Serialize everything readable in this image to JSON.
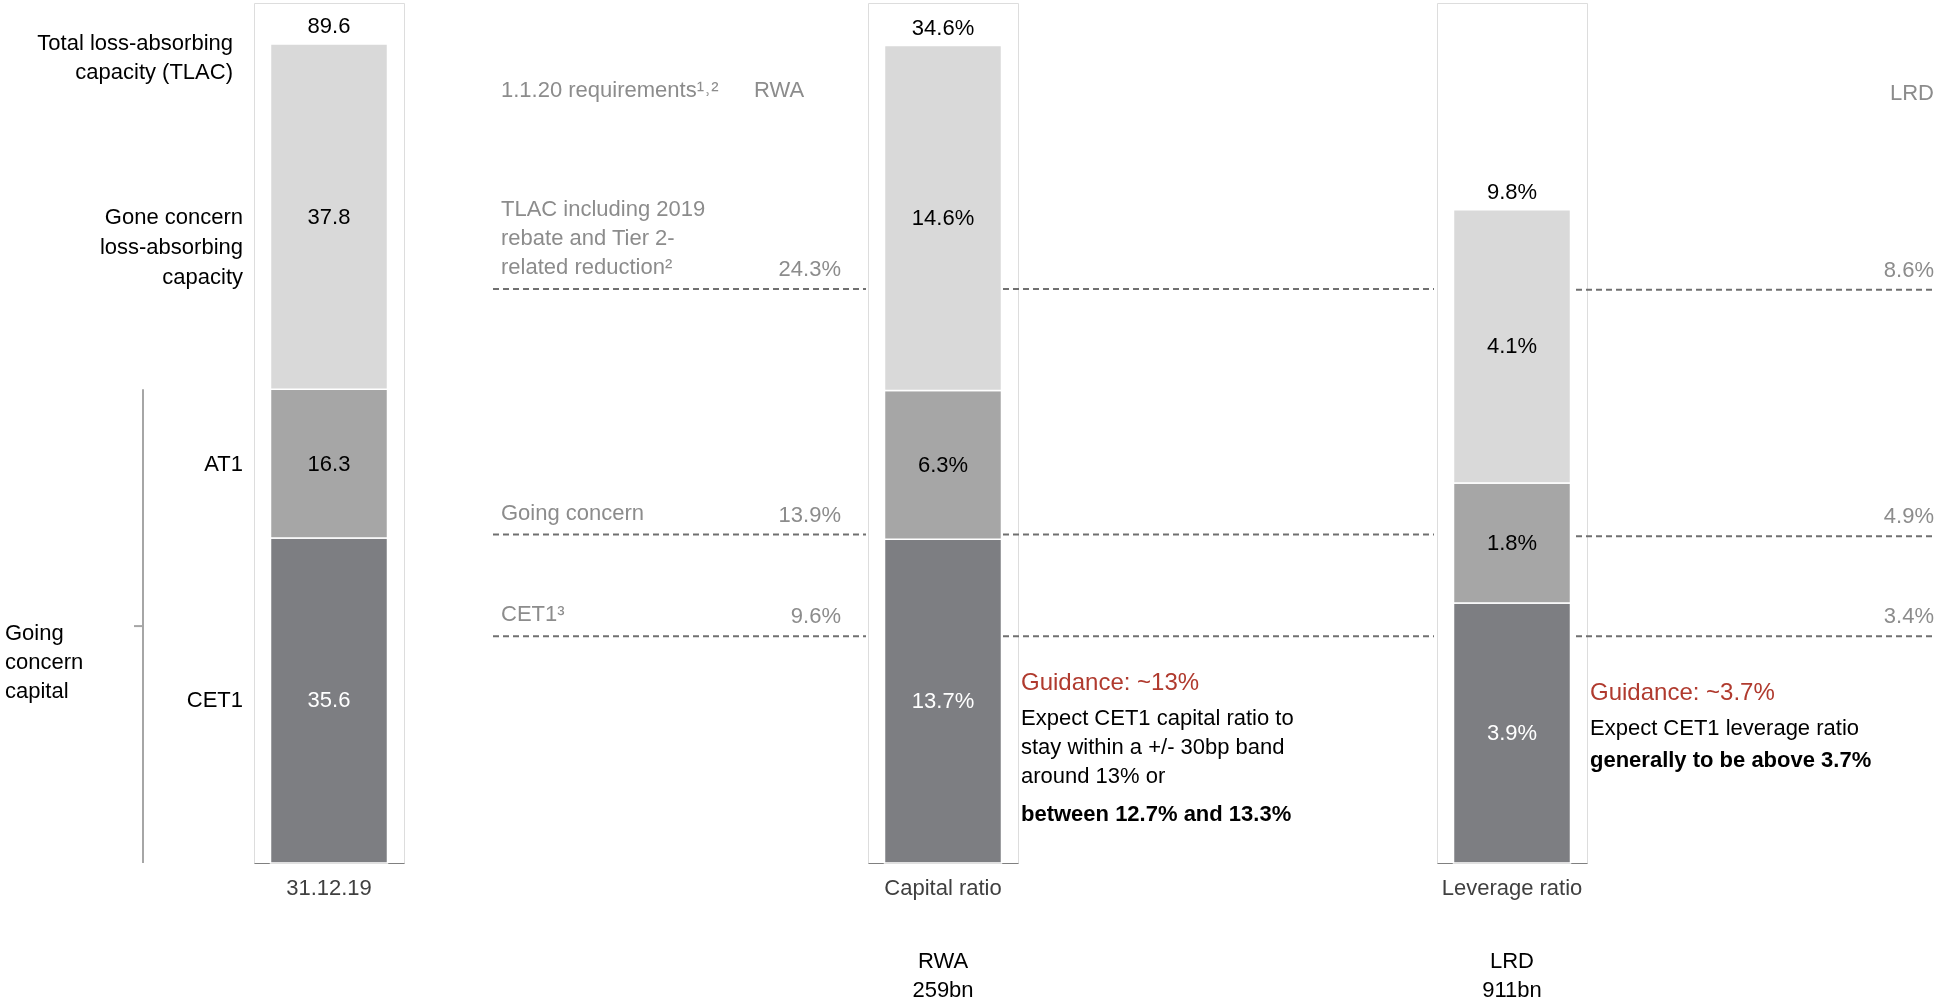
{
  "chart_data": [
    {
      "type": "bar",
      "stacked": true,
      "categories": [
        "31.12.19"
      ],
      "tick_labels": "x",
      "ylim": [
        0,
        94.2
      ],
      "data_labels": true,
      "totals": [
        "89.6"
      ],
      "series": [
        {
          "name": "CET1",
          "color": "#7d7e82",
          "values": [
            35.6
          ]
        },
        {
          "name": "AT1",
          "color": "#a6a6a6",
          "values": [
            16.3
          ]
        },
        {
          "name": "Gone concern loss-absorbing capacity",
          "color": "#d9d9d9",
          "values": [
            37.8
          ]
        }
      ],
      "annotations": [
        "Total loss-absorbing capacity (TLAC)",
        "Going concern capital"
      ]
    },
    {
      "type": "bar",
      "stacked": true,
      "categories": [
        "Capital ratio"
      ],
      "tick_labels": "x",
      "ylim": [
        0,
        36.4
      ],
      "totals": [
        "34.6%"
      ],
      "series": [
        {
          "color": "#7d7e82",
          "values": [
            13.7
          ],
          "value_labels": [
            "13.7%"
          ]
        },
        {
          "color": "#a6a6a6",
          "values": [
            6.3
          ],
          "value_labels": [
            "6.3%"
          ]
        },
        {
          "color": "#d9d9d9",
          "values": [
            14.6
          ],
          "value_labels": [
            "14.6%"
          ]
        }
      ],
      "ref_lines": [
        {
          "axis": "y",
          "value": 24.3,
          "label": "24.3%",
          "color": "#707070",
          "line_style": "dashed"
        },
        {
          "axis": "y",
          "value": 13.9,
          "label": "13.9%",
          "color": "#707070",
          "line_style": "dashed"
        },
        {
          "axis": "y",
          "value": 9.6,
          "label": "9.6%",
          "color": "#707070",
          "line_style": "dashed"
        }
      ],
      "annotations": [
        "1.1.20 requirements¹˒²",
        "RWA",
        {
          "text": "TLAC including 2019 rebate and Tier 2-related reduction²",
          "y": 24.3
        },
        {
          "text": "Going concern",
          "y": 13.9
        },
        {
          "text": "CET1³",
          "y": 9.6
        },
        "Guidance: ~13%",
        "Expect CET1 capital ratio to stay within a +/- 30bp band around 13% or",
        "between 12.7% and 13.3%",
        "RWA 259bn"
      ]
    },
    {
      "type": "bar",
      "stacked": true,
      "categories": [
        "Leverage ratio"
      ],
      "tick_labels": "x",
      "ylim": [
        0,
        12.9
      ],
      "totals": [
        "9.8%"
      ],
      "series": [
        {
          "color": "#7d7e82",
          "values": [
            3.9
          ],
          "value_labels": [
            "3.9%"
          ]
        },
        {
          "color": "#a6a6a6",
          "values": [
            1.8
          ],
          "value_labels": [
            "1.8%"
          ]
        },
        {
          "color": "#d9d9d9",
          "values": [
            4.1
          ],
          "value_labels": [
            "4.1%"
          ]
        }
      ],
      "ref_lines": [
        {
          "axis": "y",
          "value": 8.6,
          "label": "8.6%",
          "color": "#707070",
          "line_style": "dashed"
        },
        {
          "axis": "y",
          "value": 4.9,
          "label": "4.9%",
          "color": "#707070",
          "line_style": "dashed"
        },
        {
          "axis": "y",
          "value": 3.4,
          "label": "3.4%",
          "color": "#707070",
          "line_style": "dashed"
        }
      ],
      "annotations": [
        "LRD",
        "Guidance: ~3.7%",
        "Expect CET1 leverage ratio",
        "generally to be above 3.7%",
        "LRD 911bn"
      ]
    }
  ]
}
